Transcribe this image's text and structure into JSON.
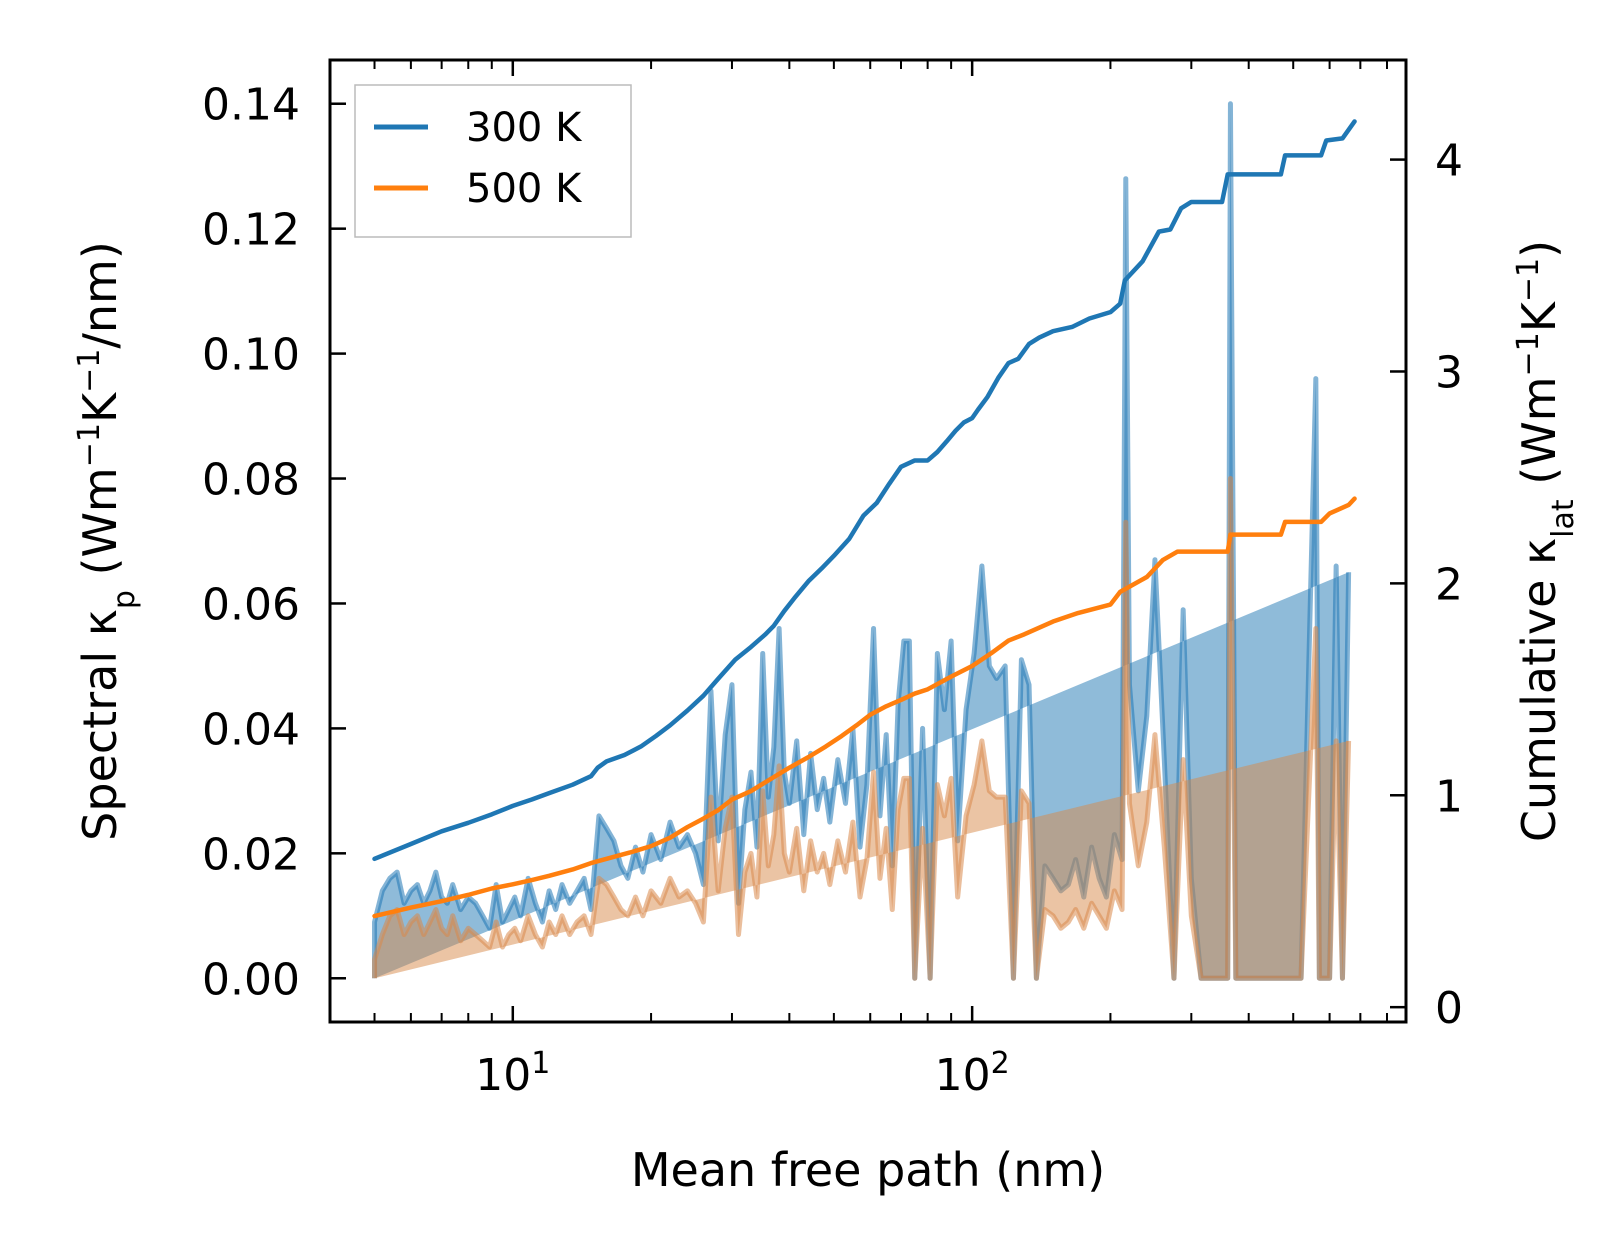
{
  "chart_data": {
    "type": "line",
    "xlabel": "Mean free path (nm)",
    "ylabel": {
      "prefix": "Spectral κ",
      "sub": "p",
      "suffix": " (Wm",
      "sup1": "−1",
      "mid": "K",
      "sup2": "−1",
      "end": "/nm)"
    },
    "y2label": {
      "prefix": "Cumulative κ",
      "sub": "lat",
      "suffix": " (Wm",
      "sup1": "−1",
      "mid": "K",
      "sup2": "−1",
      "end": ")"
    },
    "xscale": "log",
    "xlim": [
      4.0,
      880
    ],
    "ylim": [
      -0.007,
      0.147
    ],
    "y2lim": [
      -0.07,
      4.47
    ],
    "xticks": [
      {
        "value": 10,
        "base": "10",
        "exp": "1"
      },
      {
        "value": 100,
        "base": "10",
        "exp": "2"
      }
    ],
    "yticks": [
      "0.00",
      "0.02",
      "0.04",
      "0.06",
      "0.08",
      "0.10",
      "0.12",
      "0.14"
    ],
    "y2ticks": [
      "0",
      "1",
      "2",
      "3",
      "4"
    ],
    "legend": {
      "position": "top-left",
      "entries": [
        "300 K",
        "500 K"
      ]
    },
    "colors": {
      "s300": "#1f77b4",
      "s500": "#ff7f0e",
      "fill300": "#1f77b4",
      "fill500": "#d8894a"
    },
    "spectral_x": [
      5.0,
      5.2,
      5.4,
      5.6,
      5.8,
      6.0,
      6.2,
      6.4,
      6.6,
      6.8,
      7.0,
      7.2,
      7.4,
      7.7,
      8.0,
      8.3,
      8.6,
      8.9,
      9.2,
      9.5,
      9.8,
      10.1,
      10.4,
      10.8,
      11.2,
      11.6,
      12.0,
      12.4,
      12.8,
      13.3,
      13.8,
      14.3,
      14.8,
      15.4,
      16.0,
      16.6,
      17.2,
      17.8,
      18.5,
      19.2,
      20.0,
      21.0,
      22.0,
      23.0,
      24.0,
      25.0,
      26.0,
      27.0,
      28.0,
      29.0,
      30.0,
      31.0,
      32.0,
      33.0,
      34.0,
      35.0,
      36.0,
      37.0,
      38.0,
      39.0,
      40.0,
      41.5,
      43.0,
      44.5,
      46.0,
      47.5,
      49.0,
      51.0,
      53.0,
      55.0,
      57.0,
      59.0,
      61.0,
      63.0,
      65.0,
      67.0,
      69.0,
      71.0,
      73.0,
      75.0,
      78.0,
      81.0,
      84.0,
      87.0,
      90.0,
      93.0,
      97.0,
      101.0,
      105.0,
      109.0,
      113.0,
      118.0,
      123.0,
      128.0,
      133.0,
      138.0,
      144.0,
      150.0,
      156.0,
      162.0,
      168.0,
      175.0,
      182.0,
      189.0,
      196.0,
      204.0,
      212.0,
      216.0,
      220.0,
      230.0,
      240.0,
      250.0,
      262.0,
      275.0,
      288.0,
      300.0,
      315.0,
      330.0,
      345.0,
      360.0,
      365.0,
      375.0,
      420.0,
      470.0,
      520.0,
      560.0,
      570.0,
      600.0,
      620.0,
      640.0,
      660.0,
      680.0
    ],
    "spectral_300": [
      0.009,
      0.014,
      0.016,
      0.017,
      0.012,
      0.014,
      0.015,
      0.012,
      0.014,
      0.017,
      0.013,
      0.012,
      0.015,
      0.011,
      0.013,
      0.012,
      0.01,
      0.008,
      0.015,
      0.009,
      0.011,
      0.013,
      0.01,
      0.016,
      0.012,
      0.009,
      0.014,
      0.011,
      0.015,
      0.012,
      0.014,
      0.016,
      0.011,
      0.026,
      0.024,
      0.022,
      0.018,
      0.016,
      0.021,
      0.017,
      0.023,
      0.019,
      0.025,
      0.021,
      0.023,
      0.02,
      0.015,
      0.046,
      0.022,
      0.039,
      0.047,
      0.012,
      0.027,
      0.033,
      0.021,
      0.052,
      0.029,
      0.037,
      0.056,
      0.033,
      0.028,
      0.038,
      0.023,
      0.036,
      0.027,
      0.032,
      0.025,
      0.035,
      0.028,
      0.04,
      0.021,
      0.031,
      0.056,
      0.026,
      0.039,
      0.018,
      0.044,
      0.054,
      0.054,
      0.0,
      0.04,
      0.0,
      0.052,
      0.043,
      0.054,
      0.022,
      0.043,
      0.052,
      0.066,
      0.05,
      0.048,
      0.05,
      0.0,
      0.051,
      0.047,
      0.0,
      0.018,
      0.016,
      0.014,
      0.015,
      0.019,
      0.013,
      0.021,
      0.016,
      0.013,
      0.023,
      0.019,
      0.128,
      0.047,
      0.03,
      0.042,
      0.067,
      0.035,
      0.0,
      0.059,
      0.016,
      0.0,
      0.0,
      0.0,
      0.0,
      0.14,
      0.0,
      0.0,
      0.0,
      0.0,
      0.096,
      0.0,
      0.0,
      0.066,
      0.0,
      0.065
    ],
    "spectral_500": [
      0.003,
      0.007,
      0.01,
      0.011,
      0.007,
      0.009,
      0.01,
      0.007,
      0.009,
      0.011,
      0.008,
      0.007,
      0.01,
      0.006,
      0.008,
      0.007,
      0.006,
      0.005,
      0.009,
      0.005,
      0.007,
      0.008,
      0.006,
      0.01,
      0.007,
      0.005,
      0.009,
      0.007,
      0.01,
      0.007,
      0.009,
      0.01,
      0.007,
      0.016,
      0.015,
      0.013,
      0.011,
      0.01,
      0.013,
      0.01,
      0.014,
      0.012,
      0.016,
      0.013,
      0.014,
      0.012,
      0.009,
      0.029,
      0.014,
      0.024,
      0.029,
      0.007,
      0.017,
      0.02,
      0.013,
      0.03,
      0.018,
      0.023,
      0.034,
      0.02,
      0.017,
      0.024,
      0.014,
      0.022,
      0.017,
      0.02,
      0.015,
      0.022,
      0.017,
      0.025,
      0.013,
      0.019,
      0.033,
      0.016,
      0.024,
      0.011,
      0.027,
      0.032,
      0.032,
      0.0,
      0.024,
      0.0,
      0.031,
      0.026,
      0.032,
      0.013,
      0.026,
      0.031,
      0.038,
      0.03,
      0.029,
      0.029,
      0.0,
      0.03,
      0.028,
      0.0,
      0.011,
      0.01,
      0.008,
      0.009,
      0.011,
      0.008,
      0.012,
      0.01,
      0.008,
      0.014,
      0.011,
      0.073,
      0.028,
      0.018,
      0.025,
      0.039,
      0.021,
      0.0,
      0.035,
      0.01,
      0.0,
      0.0,
      0.0,
      0.0,
      0.08,
      0.0,
      0.0,
      0.0,
      0.0,
      0.056,
      0.0,
      0.0,
      0.038,
      0.0,
      0.038
    ],
    "cum_300": [
      [
        5.0,
        0.7
      ],
      [
        6.0,
        0.77
      ],
      [
        7.0,
        0.83
      ],
      [
        8.0,
        0.87
      ],
      [
        9.0,
        0.91
      ],
      [
        10.0,
        0.95
      ],
      [
        11.0,
        0.98
      ],
      [
        12.0,
        1.01
      ],
      [
        13.5,
        1.05
      ],
      [
        14.8,
        1.09
      ],
      [
        15.3,
        1.13
      ],
      [
        16.0,
        1.16
      ],
      [
        17.5,
        1.19
      ],
      [
        19.0,
        1.23
      ],
      [
        20.5,
        1.28
      ],
      [
        22.0,
        1.33
      ],
      [
        24.0,
        1.4
      ],
      [
        26.0,
        1.47
      ],
      [
        28.0,
        1.55
      ],
      [
        30.5,
        1.64
      ],
      [
        33.0,
        1.7
      ],
      [
        35.5,
        1.76
      ],
      [
        37.0,
        1.8
      ],
      [
        39.0,
        1.87
      ],
      [
        41.0,
        1.93
      ],
      [
        44.0,
        2.01
      ],
      [
        47.0,
        2.07
      ],
      [
        50.0,
        2.13
      ],
      [
        54.0,
        2.21
      ],
      [
        58.0,
        2.32
      ],
      [
        62.0,
        2.38
      ],
      [
        66.0,
        2.47
      ],
      [
        70.0,
        2.55
      ],
      [
        75.0,
        2.58
      ],
      [
        80.0,
        2.58
      ],
      [
        84.0,
        2.62
      ],
      [
        88.0,
        2.67
      ],
      [
        92.0,
        2.72
      ],
      [
        96.0,
        2.76
      ],
      [
        100.0,
        2.78
      ],
      [
        103.0,
        2.82
      ],
      [
        108.0,
        2.88
      ],
      [
        114.0,
        2.97
      ],
      [
        120.0,
        3.04
      ],
      [
        126.0,
        3.06
      ],
      [
        133.0,
        3.13
      ],
      [
        140.0,
        3.16
      ],
      [
        150.0,
        3.19
      ],
      [
        165.0,
        3.21
      ],
      [
        180.0,
        3.25
      ],
      [
        200.0,
        3.28
      ],
      [
        210.0,
        3.32
      ],
      [
        215.0,
        3.43
      ],
      [
        235.0,
        3.52
      ],
      [
        255.0,
        3.66
      ],
      [
        270.0,
        3.67
      ],
      [
        285.0,
        3.77
      ],
      [
        300.0,
        3.8
      ],
      [
        350.0,
        3.8
      ],
      [
        360.0,
        3.93
      ],
      [
        470.0,
        3.93
      ],
      [
        480.0,
        4.02
      ],
      [
        575.0,
        4.02
      ],
      [
        590.0,
        4.09
      ],
      [
        640.0,
        4.1
      ],
      [
        680.0,
        4.18
      ]
    ],
    "cum_500": [
      [
        5.0,
        0.43
      ],
      [
        6.0,
        0.47
      ],
      [
        7.0,
        0.5
      ],
      [
        8.0,
        0.53
      ],
      [
        9.0,
        0.56
      ],
      [
        10.0,
        0.58
      ],
      [
        11.0,
        0.6
      ],
      [
        12.0,
        0.62
      ],
      [
        13.5,
        0.65
      ],
      [
        14.8,
        0.68
      ],
      [
        16.0,
        0.7
      ],
      [
        18.0,
        0.73
      ],
      [
        20.0,
        0.76
      ],
      [
        22.0,
        0.8
      ],
      [
        24.0,
        0.85
      ],
      [
        26.0,
        0.89
      ],
      [
        28.0,
        0.93
      ],
      [
        30.0,
        0.98
      ],
      [
        33.0,
        1.02
      ],
      [
        36.0,
        1.07
      ],
      [
        40.0,
        1.13
      ],
      [
        44.0,
        1.18
      ],
      [
        48.0,
        1.23
      ],
      [
        52.0,
        1.28
      ],
      [
        56.0,
        1.33
      ],
      [
        60.0,
        1.38
      ],
      [
        65.0,
        1.42
      ],
      [
        70.0,
        1.45
      ],
      [
        75.0,
        1.48
      ],
      [
        80.0,
        1.5
      ],
      [
        90.0,
        1.56
      ],
      [
        100.0,
        1.61
      ],
      [
        110.0,
        1.67
      ],
      [
        120.0,
        1.73
      ],
      [
        130.0,
        1.76
      ],
      [
        150.0,
        1.82
      ],
      [
        170.0,
        1.86
      ],
      [
        200.0,
        1.9
      ],
      [
        210.0,
        1.96
      ],
      [
        240.0,
        2.03
      ],
      [
        260.0,
        2.11
      ],
      [
        280.0,
        2.15
      ],
      [
        360.0,
        2.15
      ],
      [
        365.0,
        2.23
      ],
      [
        470.0,
        2.23
      ],
      [
        480.0,
        2.29
      ],
      [
        575.0,
        2.29
      ],
      [
        600.0,
        2.33
      ],
      [
        660.0,
        2.37
      ],
      [
        680.0,
        2.4
      ]
    ]
  }
}
